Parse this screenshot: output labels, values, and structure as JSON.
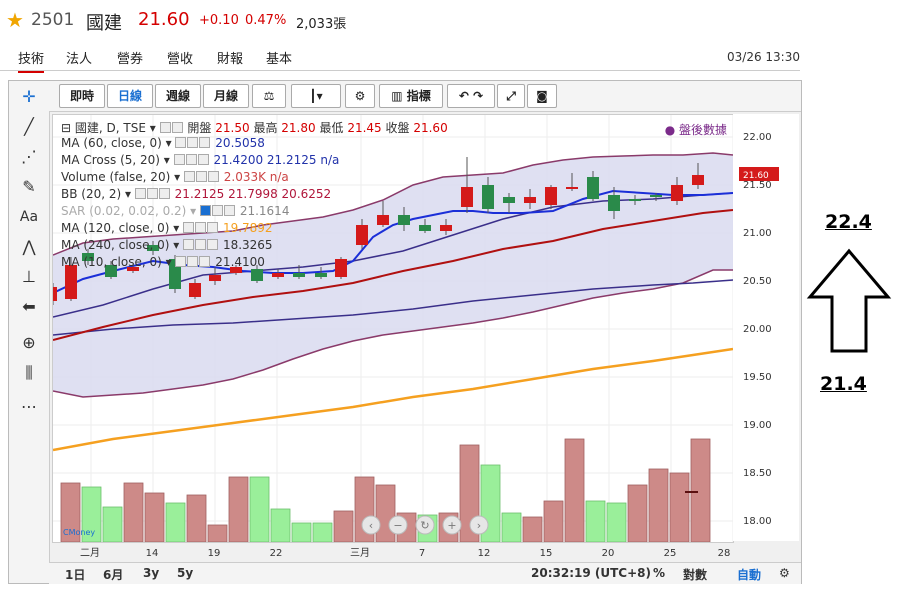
{
  "header": {
    "ticker": "2501",
    "name": "國建",
    "price": "21.60",
    "change": "+0.10",
    "change_pct": "0.47%",
    "volume": "2,033張",
    "datetime": "03/26 13:30"
  },
  "nav_tabs": [
    "技術",
    "法人",
    "營券",
    "營收",
    "財報",
    "基本"
  ],
  "toolbar": {
    "buttons": [
      "即時",
      "日線",
      "週線",
      "月線",
      "指標"
    ],
    "selected": "日線"
  },
  "legend": {
    "main": {
      "title": "國建, D, TSE",
      "open_label": "開盤",
      "open": "21.50",
      "high_label": "最高",
      "high": "21.80",
      "low_label": "最低",
      "low": "21.45",
      "close_label": "收盤",
      "close": "21.60"
    },
    "rows": [
      {
        "label": "MA (60, close, 0)",
        "values": "20.5058",
        "color": "#2233aa"
      },
      {
        "label": "MA Cross (5, 20)",
        "values": "21.4200  21.2125  n/a",
        "color": "#2233aa"
      },
      {
        "label": "Volume (false, 20)",
        "values": "2.033K  n/a",
        "color": "#cc4444"
      },
      {
        "label": "BB (20, 2)",
        "values": "21.2125  21.7998  20.6252",
        "color": "#b0163a"
      },
      {
        "label": "SAR (0.02, 0.02, 0.2)",
        "values": "21.1614",
        "color": "#888888"
      },
      {
        "label": "MA (120, close, 0)",
        "values": "19.7892",
        "color": "#f5a020"
      },
      {
        "label": "MA (240, close, 0)",
        "values": "18.3265",
        "color": "#333333"
      },
      {
        "label": "MA (10, close, 0)",
        "values": "21.4100",
        "color": "#333333"
      }
    ],
    "after_hours": "盤後數據"
  },
  "bottom_bar": {
    "ranges": [
      "1日",
      "6月",
      "3y",
      "5y"
    ],
    "time": "20:32:19 (UTC+8)",
    "pct": "%",
    "log": "對數",
    "auto": "自動"
  },
  "annotations": {
    "high": "22.4",
    "low": "21.4"
  },
  "chart_data": {
    "type": "candlestick",
    "y_ticks": [
      "22.00",
      "21.50",
      "21.00",
      "20.50",
      "20.00",
      "19.50",
      "19.00",
      "18.50",
      "18.00"
    ],
    "last_price_label": "21.60",
    "x_ticks": [
      "二月",
      "14",
      "19",
      "22",
      "三月",
      "7",
      "12",
      "15",
      "20",
      "25",
      "28"
    ]
  }
}
